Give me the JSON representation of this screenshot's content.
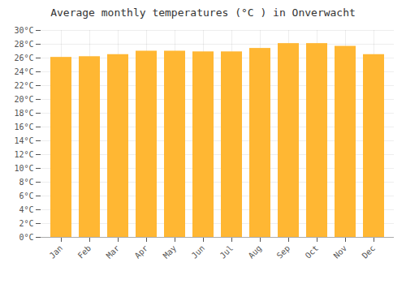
{
  "chart_data": {
    "type": "bar",
    "title": "Average monthly temperatures (°C ) in Onverwacht",
    "categories": [
      "Jan",
      "Feb",
      "Mar",
      "Apr",
      "May",
      "Jun",
      "Jul",
      "Aug",
      "Sep",
      "Oct",
      "Nov",
      "Dec"
    ],
    "values": [
      26.1,
      26.2,
      26.5,
      27.0,
      27.0,
      26.9,
      26.9,
      27.4,
      28.1,
      28.1,
      27.7,
      26.5
    ],
    "color": "#FFB733",
    "ylim": [
      0,
      30
    ],
    "yticks": [
      {
        "value": 0,
        "label": "0°C"
      },
      {
        "value": 2,
        "label": "2°C"
      },
      {
        "value": 4,
        "label": "4°C"
      },
      {
        "value": 6,
        "label": "6°C"
      },
      {
        "value": 8,
        "label": "8°C"
      },
      {
        "value": 10,
        "label": "10°C"
      },
      {
        "value": 12,
        "label": "12°C"
      },
      {
        "value": 14,
        "label": "14°C"
      },
      {
        "value": 16,
        "label": "16°C"
      },
      {
        "value": 18,
        "label": "18°C"
      },
      {
        "value": 20,
        "label": "20°C"
      },
      {
        "value": 22,
        "label": "22°C"
      },
      {
        "value": 24,
        "label": "24°C"
      },
      {
        "value": 26,
        "label": "26°C"
      },
      {
        "value": 28,
        "label": "28°C"
      },
      {
        "value": 30,
        "label": "30°C"
      }
    ],
    "grid": true
  }
}
